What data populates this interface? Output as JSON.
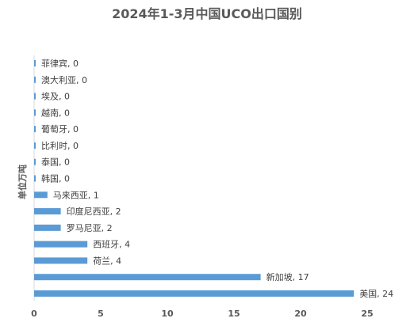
{
  "chart_data": {
    "type": "bar",
    "orientation": "horizontal",
    "title": "2024年1-3月中国UCO出口国别",
    "ylabel": "单位万吨",
    "xlabel": "",
    "categories": [
      "美国",
      "新加坡",
      "荷兰",
      "西班牙",
      "罗马尼亚",
      "印度尼西亚",
      "马来西亚",
      "韩国",
      "泰国",
      "比利时",
      "葡萄牙",
      "越南",
      "埃及",
      "澳大利亚",
      "菲律宾"
    ],
    "values": [
      24,
      17,
      4,
      4,
      2,
      2,
      1,
      0,
      0,
      0,
      0,
      0,
      0,
      0,
      0
    ],
    "data_labels": [
      "美国, 24",
      "新加坡, 17",
      "荷兰, 4",
      "西班牙, 4",
      "罗马尼亚, 2",
      "印度尼西亚, 2",
      "马来西亚, 1",
      "韩国, 0",
      "泰国, 0",
      "比利时, 0",
      "葡萄牙, 0",
      "越南, 0",
      "埃及, 0",
      "澳大利亚, 0",
      "菲律宾, 0"
    ],
    "xlim": [
      0,
      25
    ],
    "xticks": [
      0,
      5,
      10,
      15,
      20,
      25
    ],
    "grid": false,
    "legend": "none",
    "bar_color": "#5B9BD5"
  }
}
